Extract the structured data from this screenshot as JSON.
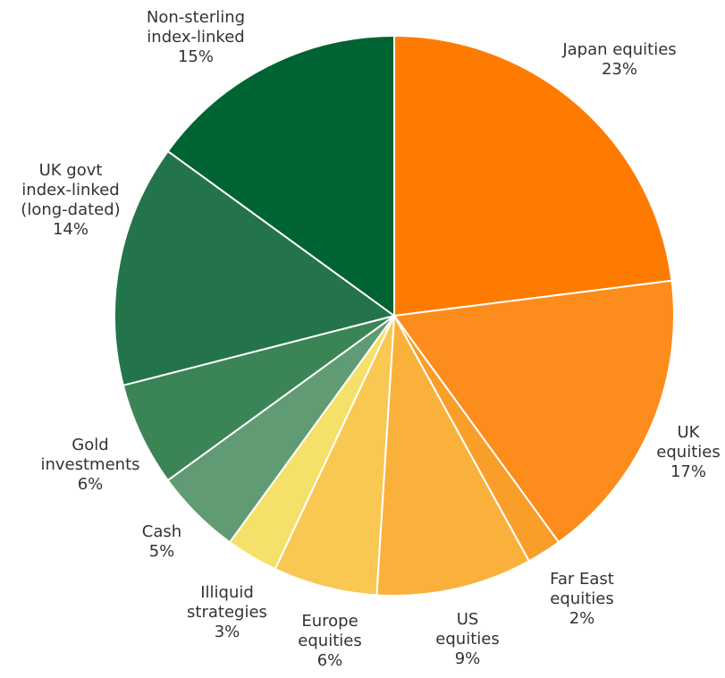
{
  "chart_data": {
    "type": "pie",
    "title": "",
    "start": "12 o'clock",
    "direction": "clockwise",
    "slice_border_color": "#ffffff",
    "slices": [
      {
        "label_lines": [
          "Japan equities"
        ],
        "percent_text": "23%",
        "value": 23,
        "color": "#FF7B00"
      },
      {
        "label_lines": [
          "UK",
          "equities"
        ],
        "percent_text": "17%",
        "value": 17,
        "color": "#FC8C1C"
      },
      {
        "label_lines": [
          "Far East",
          "equities"
        ],
        "percent_text": "2%",
        "value": 2,
        "color": "#FA9E2A"
      },
      {
        "label_lines": [
          "US",
          "equities"
        ],
        "percent_text": "9%",
        "value": 9,
        "color": "#FAB13C"
      },
      {
        "label_lines": [
          "Europe",
          "equities"
        ],
        "percent_text": "6%",
        "value": 6,
        "color": "#F8C852"
      },
      {
        "label_lines": [
          "Illiquid",
          "strategies"
        ],
        "percent_text": "3%",
        "value": 3,
        "color": "#F5E069"
      },
      {
        "label_lines": [
          "Cash"
        ],
        "percent_text": "5%",
        "value": 5,
        "color": "#609B73"
      },
      {
        "label_lines": [
          "Gold",
          "investments"
        ],
        "percent_text": "6%",
        "value": 6,
        "color": "#3B8456"
      },
      {
        "label_lines": [
          "UK govt",
          "index-linked",
          "(long-dated)"
        ],
        "percent_text": "14%",
        "value": 14,
        "color": "#23744A"
      },
      {
        "label_lines": [
          "Non-sterling",
          "index-linked"
        ],
        "percent_text": "15%",
        "value": 15,
        "color": "#006332"
      }
    ]
  }
}
